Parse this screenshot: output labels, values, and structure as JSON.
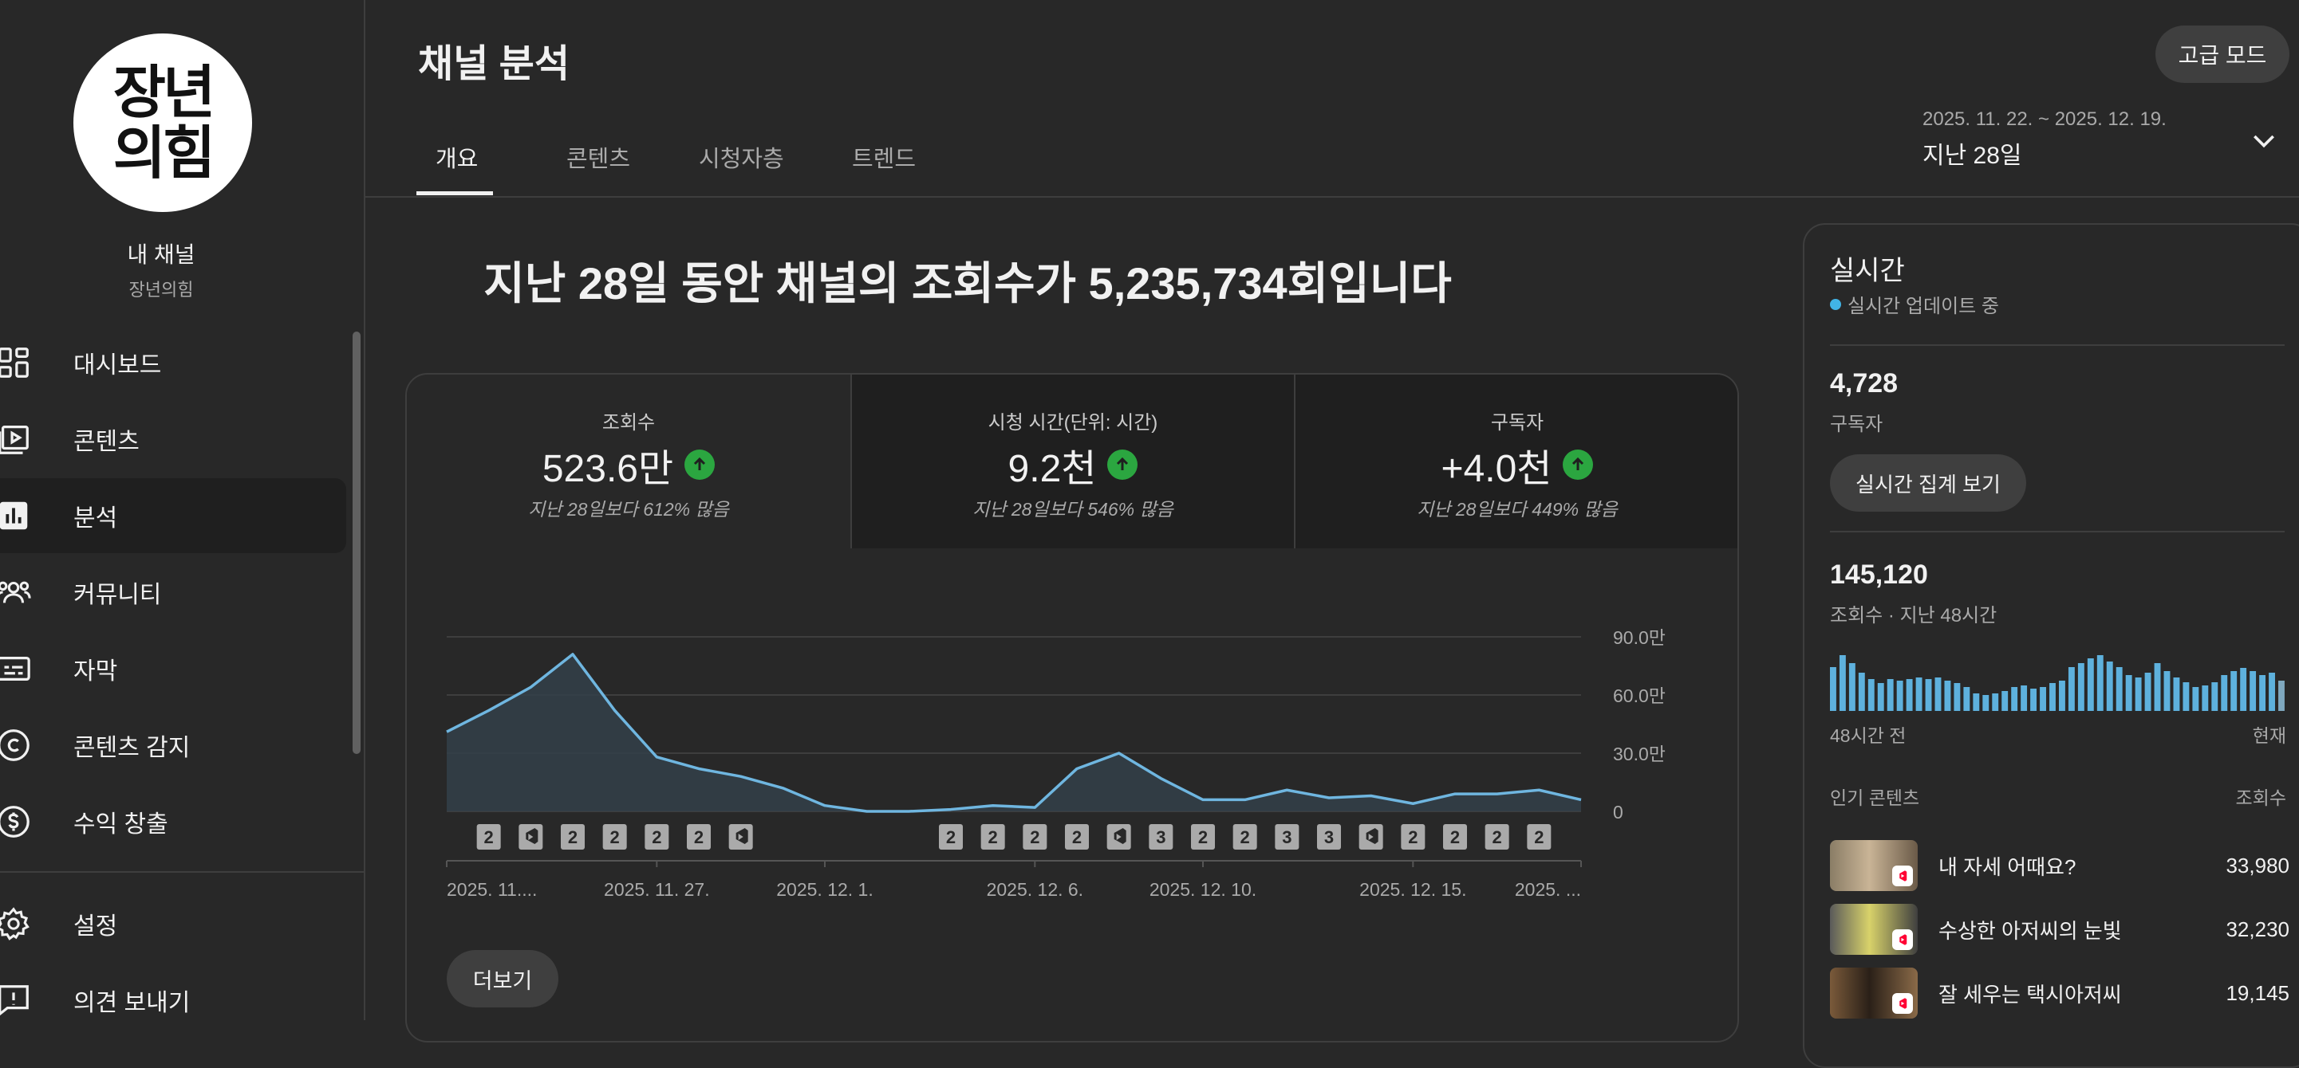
{
  "sidebar": {
    "avatar_text": "장년\n의힘",
    "channel_title": "내 채널",
    "channel_name": "장년의힘",
    "items": [
      {
        "label": "대시보드",
        "icon": "dashboard-icon"
      },
      {
        "label": "콘텐츠",
        "icon": "content-icon"
      },
      {
        "label": "분석",
        "icon": "analytics-icon",
        "active": true
      },
      {
        "label": "커뮤니티",
        "icon": "community-icon"
      },
      {
        "label": "자막",
        "icon": "subtitles-icon"
      },
      {
        "label": "콘텐츠 감지",
        "icon": "copyright-icon"
      },
      {
        "label": "수익 창출",
        "icon": "monetization-icon"
      }
    ],
    "bottom_items": [
      {
        "label": "설정",
        "icon": "gear-icon"
      },
      {
        "label": "의견 보내기",
        "icon": "feedback-icon"
      }
    ]
  },
  "header": {
    "title": "채널 분석",
    "advanced_button": "고급 모드",
    "tabs": [
      "개요",
      "콘텐츠",
      "시청자층",
      "트렌드"
    ],
    "active_tab": "개요",
    "date_range": "2025. 11. 22. ~ 2025. 12. 19.",
    "date_label": "지난 28일"
  },
  "headline": "지난 28일 동안 채널의 조회수가 5,235,734회입니다",
  "metrics": [
    {
      "label": "조회수",
      "value": "523.6만",
      "compare": "지난 28일보다 612% 많음",
      "trend": "up"
    },
    {
      "label": "시청 시간(단위: 시간)",
      "value": "9.2천",
      "compare": "지난 28일보다 546% 많음",
      "trend": "up"
    },
    {
      "label": "구독자",
      "value": "+4.0천",
      "compare": "지난 28일보다 449% 많음",
      "trend": "up"
    }
  ],
  "chart_data": {
    "type": "area",
    "series": [
      {
        "values": [
          41,
          52,
          64,
          81,
          52,
          28,
          22,
          18,
          12,
          3,
          0,
          0,
          1,
          3,
          2,
          22,
          30,
          17,
          6,
          6,
          11,
          7,
          8,
          4,
          9,
          9,
          11,
          6
        ]
      }
    ],
    "ylim": [
      0,
      90
    ],
    "y_ticks": [
      "90.0만",
      "60.0만",
      "30.0만",
      "0"
    ],
    "y_tick_values": [
      90,
      60,
      30,
      0
    ],
    "x_tick_labels": [
      "2025. 11....",
      "2025. 11. 27.",
      "2025. 12. 1.",
      "2025. 12. 6.",
      "2025. 12. 10.",
      "2025. 12. 15.",
      "2025. ..."
    ],
    "x_tick_index": [
      0,
      5,
      9,
      14,
      18,
      23,
      27
    ],
    "markers": [
      {
        "i": 1,
        "t": "2"
      },
      {
        "i": 2,
        "t": "shorts"
      },
      {
        "i": 3,
        "t": "2"
      },
      {
        "i": 4,
        "t": "2"
      },
      {
        "i": 5,
        "t": "2"
      },
      {
        "i": 6,
        "t": "2"
      },
      {
        "i": 7,
        "t": "shorts"
      },
      {
        "i": 12,
        "t": "2"
      },
      {
        "i": 13,
        "t": "2"
      },
      {
        "i": 14,
        "t": "2"
      },
      {
        "i": 15,
        "t": "2"
      },
      {
        "i": 16,
        "t": "shorts"
      },
      {
        "i": 17,
        "t": "3"
      },
      {
        "i": 18,
        "t": "2"
      },
      {
        "i": 19,
        "t": "2"
      },
      {
        "i": 20,
        "t": "3"
      },
      {
        "i": 21,
        "t": "3"
      },
      {
        "i": 22,
        "t": "shorts"
      },
      {
        "i": 23,
        "t": "2"
      },
      {
        "i": 24,
        "t": "2"
      },
      {
        "i": 25,
        "t": "2"
      },
      {
        "i": 26,
        "t": "2"
      }
    ],
    "line_color": "#6fb6e0"
  },
  "more_button": "더보기",
  "realtime": {
    "title": "실시간",
    "status": "실시간 업데이트 중",
    "subscribers": "4,728",
    "subscribers_label": "구독자",
    "button": "실시간 집계 보기",
    "views": "145,120",
    "views_label": "조회수 · 지난 48시간",
    "hourly_views": [
      55,
      70,
      60,
      48,
      40,
      35,
      40,
      38,
      40,
      42,
      40,
      42,
      38,
      35,
      30,
      22,
      20,
      22,
      25,
      30,
      32,
      28,
      30,
      35,
      38,
      55,
      60,
      66,
      70,
      62,
      55,
      45,
      42,
      48,
      60,
      50,
      42,
      36,
      30,
      32,
      36,
      45,
      50,
      54,
      50,
      45,
      48,
      38
    ],
    "axis_start": "48시간 전",
    "axis_end": "현재",
    "popular_header": "인기 콘텐츠",
    "popular_views_header": "조회수",
    "popular": [
      {
        "title": "내 자세 어때요?",
        "views": "33,980"
      },
      {
        "title": "수상한 아저씨의 눈빛",
        "views": "32,230"
      },
      {
        "title": "잘 세우는 택시아저씨",
        "views": "19,145"
      }
    ],
    "bar_color": "#5eb1dd"
  }
}
